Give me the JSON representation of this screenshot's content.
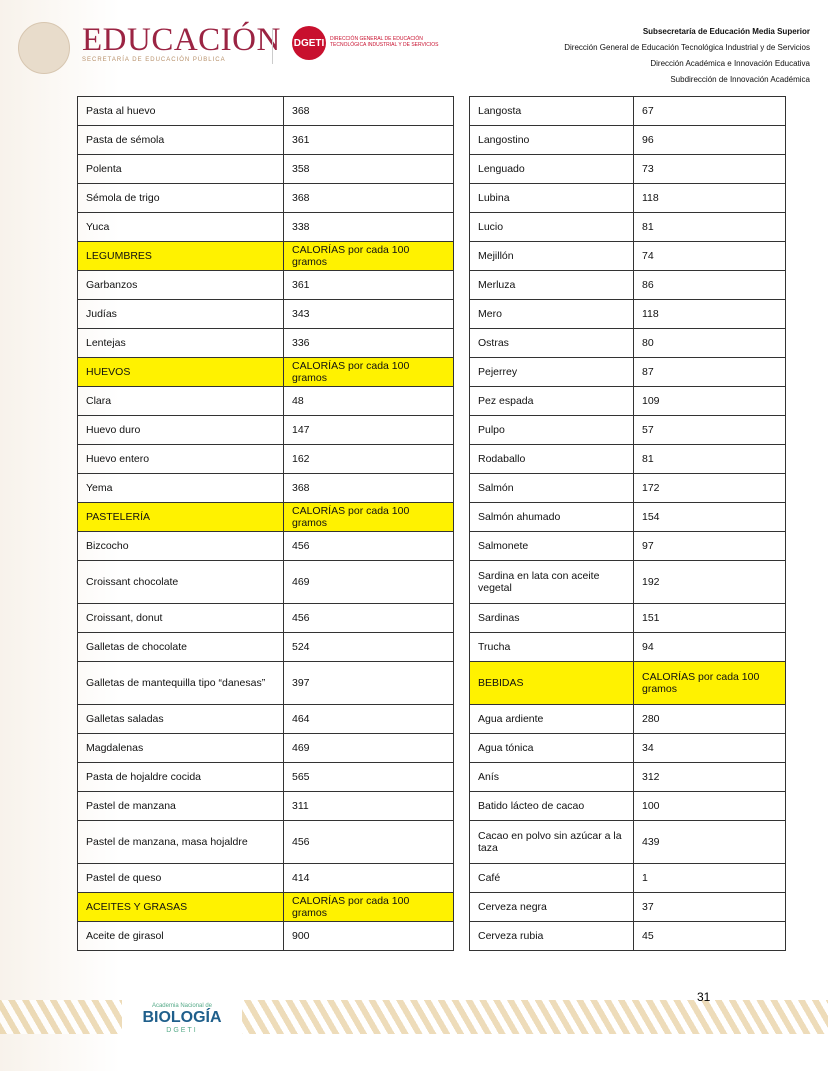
{
  "header": {
    "logo_title": "EDUCACIÓN",
    "logo_subtitle": "SECRETARÍA DE EDUCACIÓN PÚBLICA",
    "dgeti_logo": "DGETI",
    "dgeti_text": "DIRECCIÓN GENERAL DE EDUCACIÓN TECNOLÓGICA INDUSTRIAL Y DE SERVICIOS",
    "lines": [
      "Subsecretaría de Educación Media Superior",
      "Dirección General de Educación Tecnológica Industrial y de Servicios",
      "Dirección Académica e Innovación Educativa",
      "Subdirección de Innovación Académica"
    ]
  },
  "highlight_color": "#fff200",
  "left_table": [
    [
      "Pasta al huevo",
      "368"
    ],
    [
      "Pasta de sémola",
      "361"
    ],
    [
      "Polenta",
      "358"
    ],
    [
      "Sémola de trigo",
      "368"
    ],
    [
      "Yuca",
      "338"
    ],
    [
      "LEGUMBRES",
      "CALORÍAS por cada 100 gramos"
    ],
    [
      "Garbanzos",
      "361"
    ],
    [
      "Judías",
      "343"
    ],
    [
      "Lentejas",
      "336"
    ],
    [
      "HUEVOS",
      "CALORÍAS por cada 100 gramos"
    ],
    [
      "Clara",
      "48"
    ],
    [
      "Huevo duro",
      "147"
    ],
    [
      "Huevo entero",
      "162"
    ],
    [
      "Yema",
      "368"
    ],
    [
      "PASTELERÍA",
      "CALORÍAS por cada 100 gramos"
    ],
    [
      "Bizcocho",
      "456"
    ],
    [
      "Croissant chocolate",
      "469"
    ],
    [
      "Croissant, donut",
      "456"
    ],
    [
      "Galletas de chocolate",
      "524"
    ],
    [
      "Galletas de mantequilla tipo “danesas”",
      "397"
    ],
    [
      "Galletas saladas",
      "464"
    ],
    [
      "Magdalenas",
      "469"
    ],
    [
      "Pasta de hojaldre cocida",
      "565"
    ],
    [
      "Pastel de manzana",
      "311"
    ],
    [
      "Pastel de manzana, masa hojaldre",
      "456"
    ],
    [
      "Pastel de queso",
      "414"
    ],
    [
      "ACEITES Y GRASAS",
      "CALORÍAS por cada 100 gramos"
    ],
    [
      "Aceite de girasol",
      "900"
    ]
  ],
  "right_table": [
    [
      "Langosta",
      "67"
    ],
    [
      "Langostino",
      "96"
    ],
    [
      "Lenguado",
      "73"
    ],
    [
      "Lubina",
      "118"
    ],
    [
      "Lucio",
      "81"
    ],
    [
      "Mejillón",
      "74"
    ],
    [
      "Merluza",
      "86"
    ],
    [
      "Mero",
      "118"
    ],
    [
      "Ostras",
      "80"
    ],
    [
      "Pejerrey",
      "87"
    ],
    [
      "Pez espada",
      "109"
    ],
    [
      "Pulpo",
      "57"
    ],
    [
      "Rodaballo",
      "81"
    ],
    [
      "Salmón",
      "172"
    ],
    [
      "Salmón ahumado",
      "154"
    ],
    [
      "Salmonete",
      "97"
    ],
    [
      "Sardina en lata con aceite vegetal",
      "192"
    ],
    [
      "Sardinas",
      "151"
    ],
    [
      "Trucha",
      "94"
    ],
    [
      "BEBIDAS",
      "CALORÍAS por cada 100 gramos"
    ],
    [
      "Agua ardiente",
      "280"
    ],
    [
      "Agua tónica",
      "34"
    ],
    [
      "Anís",
      "312"
    ],
    [
      "Batido lácteo de cacao",
      "100"
    ],
    [
      "Cacao en polvo sin azúcar a la taza",
      "439"
    ],
    [
      "Café",
      "1"
    ],
    [
      "Cerveza negra",
      "37"
    ],
    [
      "Cerveza rubia",
      "45"
    ]
  ],
  "footer": {
    "logo_small": "Academia Nacional de",
    "logo_title": "BIOLOGÍA",
    "logo_sub": "DGETI",
    "page_number": "31"
  }
}
